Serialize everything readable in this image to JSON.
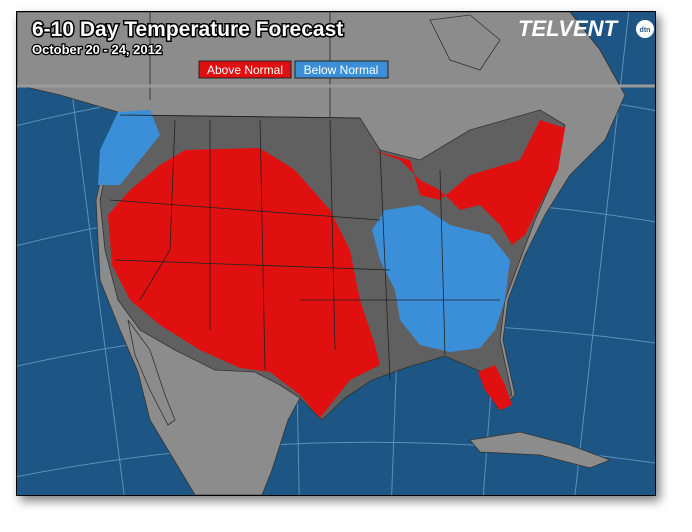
{
  "header": {
    "title": "6-10 Day Temperature Forecast",
    "subtitle": "October 20 - 24, 2012",
    "logo": "TELVENT",
    "logo_badge": "dtn"
  },
  "legend": [
    {
      "label": "Above Normal",
      "color": "#e01010"
    },
    {
      "label": "Below Normal",
      "color": "#3a8fd8"
    }
  ]
}
